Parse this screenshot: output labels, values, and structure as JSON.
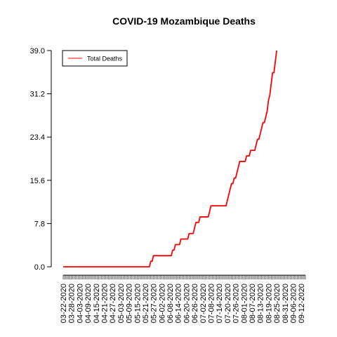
{
  "chart_data": {
    "type": "line",
    "title": "COVID-19 Mozambique Deaths",
    "xlabel": "",
    "ylabel": "",
    "ylim": [
      0,
      39
    ],
    "yticks": [
      "0.0",
      "7.8",
      "15.6",
      "23.4",
      "31.2",
      "39.0"
    ],
    "x_start": "03-22-2020",
    "x_end": "09-15-2020",
    "xtick_labels": [
      "03-22-2020",
      "03-28-2020",
      "04-03-2020",
      "04-09-2020",
      "04-15-2020",
      "04-21-2020",
      "04-27-2020",
      "05-03-2020",
      "05-09-2020",
      "05-15-2020",
      "05-21-2020",
      "05-27-2020",
      "06-02-2020",
      "06-08-2020",
      "06-14-2020",
      "06-20-2020",
      "06-26-2020",
      "07-02-2020",
      "07-08-2020",
      "07-14-2020",
      "07-20-2020",
      "07-26-2020",
      "08-01-2020",
      "08-07-2020",
      "08-13-2020",
      "08-19-2020",
      "08-25-2020",
      "08-31-2020",
      "09-06-2020",
      "09-12-2020"
    ],
    "legend": {
      "position": "top-left"
    },
    "colors": {
      "series": "#ff0000"
    },
    "series": [
      {
        "name": "Total Deaths",
        "points": [
          [
            "03-22-2020",
            0
          ],
          [
            "05-24-2020",
            0
          ],
          [
            "05-25-2020",
            1
          ],
          [
            "05-26-2020",
            1
          ],
          [
            "05-27-2020",
            2
          ],
          [
            "06-09-2020",
            2
          ],
          [
            "06-10-2020",
            3
          ],
          [
            "06-11-2020",
            3
          ],
          [
            "06-12-2020",
            4
          ],
          [
            "06-15-2020",
            4
          ],
          [
            "06-16-2020",
            5
          ],
          [
            "06-21-2020",
            5
          ],
          [
            "06-22-2020",
            6
          ],
          [
            "06-25-2020",
            6
          ],
          [
            "06-26-2020",
            7
          ],
          [
            "06-27-2020",
            8
          ],
          [
            "06-29-2020",
            8
          ],
          [
            "06-30-2020",
            9
          ],
          [
            "07-06-2020",
            9
          ],
          [
            "07-07-2020",
            10
          ],
          [
            "07-08-2020",
            11
          ],
          [
            "07-19-2020",
            11
          ],
          [
            "07-20-2020",
            12
          ],
          [
            "07-21-2020",
            13
          ],
          [
            "07-22-2020",
            14
          ],
          [
            "07-23-2020",
            15
          ],
          [
            "07-24-2020",
            15
          ],
          [
            "07-25-2020",
            16
          ],
          [
            "07-26-2020",
            16
          ],
          [
            "07-27-2020",
            17
          ],
          [
            "07-28-2020",
            18
          ],
          [
            "07-29-2020",
            19
          ],
          [
            "08-02-2020",
            19
          ],
          [
            "08-03-2020",
            20
          ],
          [
            "08-05-2020",
            20
          ],
          [
            "08-06-2020",
            21
          ],
          [
            "08-09-2020",
            21
          ],
          [
            "08-10-2020",
            22
          ],
          [
            "08-11-2020",
            23
          ],
          [
            "08-12-2020",
            23
          ],
          [
            "08-13-2020",
            24
          ],
          [
            "08-14-2020",
            25
          ],
          [
            "08-15-2020",
            26
          ],
          [
            "08-16-2020",
            26
          ],
          [
            "08-17-2020",
            27
          ],
          [
            "08-18-2020",
            28
          ],
          [
            "08-19-2020",
            30
          ],
          [
            "08-20-2020",
            31
          ],
          [
            "08-21-2020",
            33
          ],
          [
            "08-22-2020",
            35
          ],
          [
            "08-23-2020",
            35
          ],
          [
            "08-24-2020",
            37
          ],
          [
            "08-25-2020",
            39
          ]
        ]
      }
    ]
  }
}
